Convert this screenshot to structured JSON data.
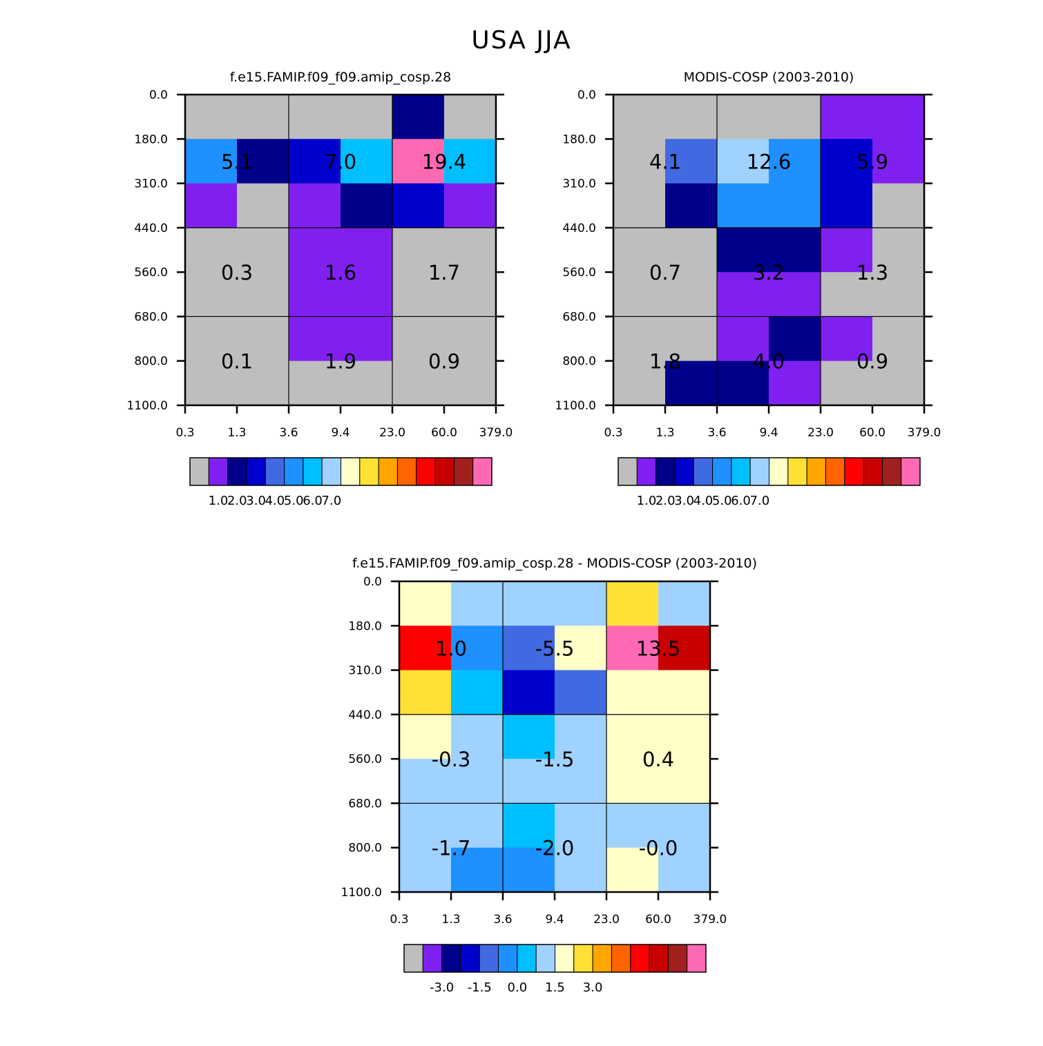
{
  "title": "USA JJA",
  "palette": {
    "missing": "#bebebe",
    "colors": [
      "#bebebe",
      "#8020f0",
      "#00008b",
      "#0000cd",
      "#4169e1",
      "#1e90ff",
      "#00bfff",
      "#a0d2ff",
      "#ffffc8",
      "#ffe135",
      "#ffa500",
      "#ff6400",
      "#ff0000",
      "#c80000",
      "#a02020",
      "#ff69b4"
    ]
  },
  "chart_data": [
    {
      "type": "heatmap",
      "title": "f.e15.FAMIP.f09_f09.amip_cosp.28",
      "x_tick_labels": [
        "0.3",
        "1.3",
        "3.6",
        "9.4",
        "23.0",
        "60.0",
        "379.0"
      ],
      "y_tick_labels": [
        "0.0",
        "180.0",
        "310.0",
        "440.0",
        "560.0",
        "680.0",
        "800.0",
        "1100.0"
      ],
      "cell_color_index": [
        [
          0,
          0,
          0,
          0,
          2,
          0
        ],
        [
          5,
          2,
          3,
          6,
          15,
          6
        ],
        [
          1,
          0,
          1,
          2,
          3,
          1
        ],
        [
          0,
          0,
          1,
          1,
          0,
          0
        ],
        [
          0,
          0,
          1,
          1,
          0,
          0
        ],
        [
          0,
          0,
          1,
          1,
          0,
          0
        ],
        [
          0,
          0,
          0,
          0,
          0,
          0
        ]
      ],
      "block_values": [
        [
          "5.1",
          "7.0",
          "19.4"
        ],
        [
          "0.3",
          "1.6",
          "1.7"
        ],
        [
          "0.1",
          "1.9",
          "0.9"
        ]
      ],
      "colorbar_labels": [
        "1.0",
        "2.0",
        "3.0",
        "4.0",
        "5.0",
        "6.0",
        "7.0"
      ]
    },
    {
      "type": "heatmap",
      "title": "MODIS-COSP (2003-2010)",
      "x_tick_labels": [
        "0.3",
        "1.3",
        "3.6",
        "9.4",
        "23.0",
        "60.0",
        "379.0"
      ],
      "y_tick_labels": [
        "0.0",
        "180.0",
        "310.0",
        "440.0",
        "560.0",
        "680.0",
        "800.0",
        "1100.0"
      ],
      "cell_color_index": [
        [
          0,
          0,
          0,
          0,
          1,
          1
        ],
        [
          0,
          4,
          7,
          5,
          3,
          1
        ],
        [
          0,
          2,
          5,
          5,
          3,
          0
        ],
        [
          0,
          0,
          2,
          2,
          1,
          0
        ],
        [
          0,
          0,
          1,
          1,
          0,
          0
        ],
        [
          0,
          0,
          1,
          2,
          1,
          0
        ],
        [
          0,
          2,
          2,
          1,
          0,
          0
        ]
      ],
      "block_values": [
        [
          "4.1",
          "12.6",
          "5.9"
        ],
        [
          "0.7",
          "3.2",
          "1.3"
        ],
        [
          "1.8",
          "4.0",
          "0.9"
        ]
      ],
      "colorbar_labels": [
        "1.0",
        "2.0",
        "3.0",
        "4.0",
        "5.0",
        "6.0",
        "7.0"
      ]
    },
    {
      "type": "heatmap",
      "title": "f.e15.FAMIP.f09_f09.amip_cosp.28 - MODIS-COSP (2003-2010)",
      "x_tick_labels": [
        "0.3",
        "1.3",
        "3.6",
        "9.4",
        "23.0",
        "60.0",
        "379.0"
      ],
      "y_tick_labels": [
        "0.0",
        "180.0",
        "310.0",
        "440.0",
        "560.0",
        "680.0",
        "800.0",
        "1100.0"
      ],
      "cell_color_index": [
        [
          8,
          7,
          7,
          7,
          9,
          7
        ],
        [
          12,
          5,
          4,
          8,
          15,
          13
        ],
        [
          9,
          6,
          3,
          4,
          8,
          8
        ],
        [
          8,
          7,
          6,
          7,
          8,
          8
        ],
        [
          7,
          7,
          7,
          7,
          8,
          8
        ],
        [
          7,
          7,
          6,
          7,
          7,
          7
        ],
        [
          7,
          5,
          5,
          7,
          8,
          7
        ]
      ],
      "block_values": [
        [
          "1.0",
          "-5.5",
          "13.5"
        ],
        [
          "-0.3",
          "-1.5",
          "0.4"
        ],
        [
          "-1.7",
          "-2.0",
          "-0.0"
        ]
      ],
      "colorbar_labels": [
        "-3.0",
        "-1.5",
        "0.0",
        "1.5",
        "3.0"
      ]
    }
  ]
}
